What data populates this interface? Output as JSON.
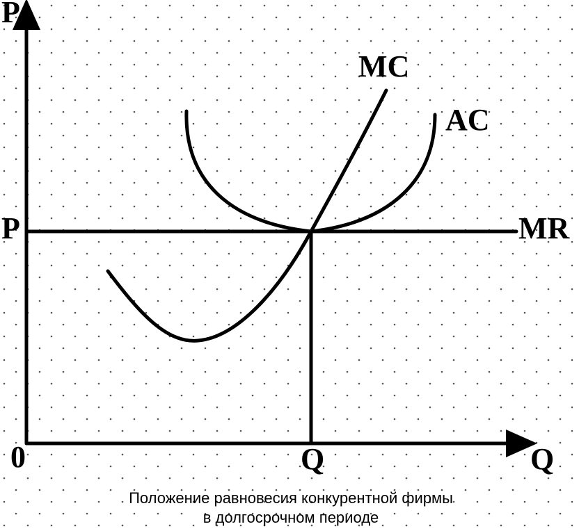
{
  "axes": {
    "y_label": "P",
    "x_label": "Q",
    "origin": "0"
  },
  "levels": {
    "price": "P",
    "quantity": "Q"
  },
  "curves": {
    "mc": "MC",
    "ac": "AC",
    "mr": "MR"
  },
  "caption": {
    "lines": [
      "Положение равновесия конкурентной фирмы",
      "в долгосрочном периоде"
    ]
  }
}
